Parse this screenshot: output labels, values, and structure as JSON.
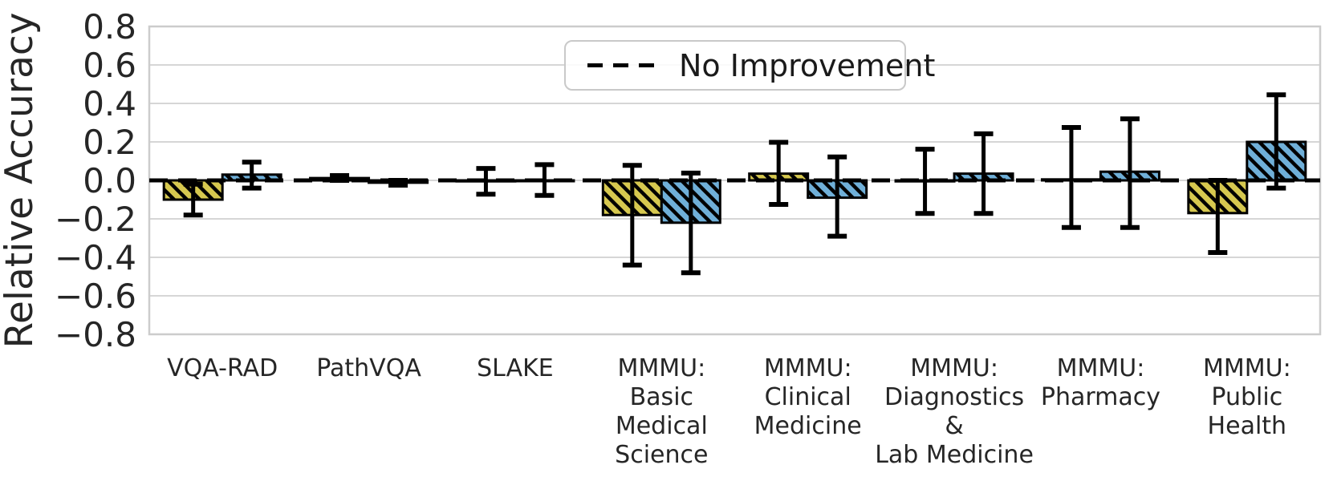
{
  "chart_data": {
    "type": "bar",
    "title": "",
    "xlabel": "",
    "ylabel": "Relative Accuracy",
    "ylim": [
      -0.8,
      0.8
    ],
    "y_ticks": [
      0.8,
      0.6,
      0.4,
      0.2,
      0.0,
      -0.2,
      -0.4,
      -0.6,
      -0.8
    ],
    "y_tick_labels": [
      "0.8",
      "0.6",
      "0.4",
      "0.2",
      "0.0",
      "−0.2",
      "−0.4",
      "−0.6",
      "−0.8"
    ],
    "grid": true,
    "legend": {
      "label": "No Improvement",
      "position": "upper center",
      "style": "dashed-black-line"
    },
    "zero_line": {
      "value": 0.0,
      "style": "dashed",
      "color": "#000000"
    },
    "categories": [
      "VQA-RAD",
      "PathVQA",
      "SLAKE",
      "MMMU: Basic Medical Science",
      "MMMU: Clinical Medicine",
      "MMMU: Diagnostics & Lab Medicine",
      "MMMU: Pharmacy",
      "MMMU: Public Health"
    ],
    "category_label_lines": [
      [
        "VQA-RAD"
      ],
      [
        "PathVQA"
      ],
      [
        "SLAKE"
      ],
      [
        "MMMU:",
        "Basic",
        "Medical",
        "Science"
      ],
      [
        "MMMU:",
        "Clinical",
        "Medicine"
      ],
      [
        "MMMU:",
        "Diagnostics",
        "&",
        "Lab Medicine"
      ],
      [
        "MMMU:",
        "Pharmacy"
      ],
      [
        "MMMU:",
        "Public",
        "Health"
      ]
    ],
    "series": [
      {
        "name": "yellow-hatched-bars",
        "color": "#d6c84f",
        "hatch": "\\\\",
        "edge_color": "#000000",
        "values": [
          -0.1,
          0.012,
          -0.005,
          -0.18,
          0.035,
          -0.005,
          0.005,
          -0.17
        ],
        "err_low": [
          -0.18,
          0.0,
          -0.072,
          -0.44,
          -0.125,
          -0.172,
          -0.245,
          -0.375
        ],
        "err_high": [
          -0.02,
          0.025,
          0.062,
          0.078,
          0.198,
          0.162,
          0.275,
          0.0
        ]
      },
      {
        "name": "blue-hatched-bars",
        "color": "#6fafd8",
        "hatch": "\\\\",
        "edge_color": "#000000",
        "values": [
          0.03,
          -0.012,
          0.0,
          -0.22,
          -0.09,
          0.035,
          0.045,
          0.2
        ],
        "err_low": [
          -0.04,
          -0.025,
          -0.078,
          -0.48,
          -0.29,
          -0.172,
          -0.245,
          -0.04
        ],
        "err_high": [
          0.095,
          0.0,
          0.082,
          0.038,
          0.122,
          0.242,
          0.32,
          0.445
        ]
      }
    ],
    "colors": {
      "grid": "#d6d6d6",
      "plot_border": "#cccccc",
      "error_bar": "#000000",
      "text": "#262626"
    }
  }
}
